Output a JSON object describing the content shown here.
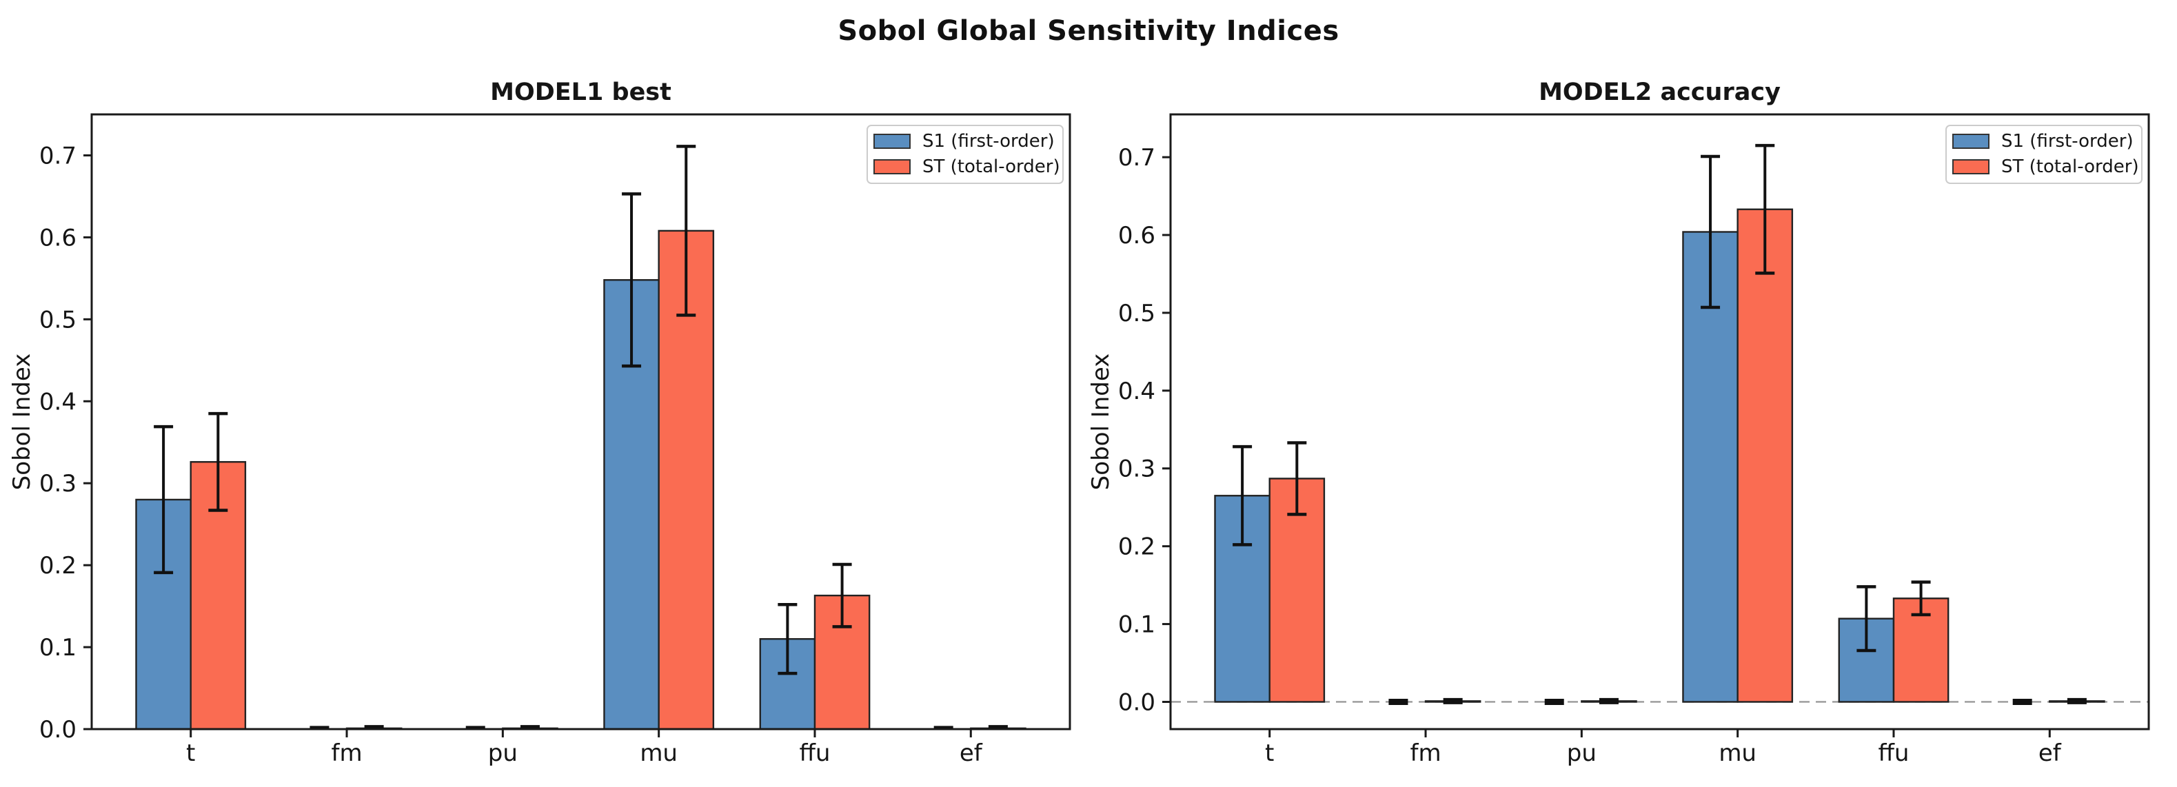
{
  "figure": {
    "title": "Sobol Global Sensitivity Indices",
    "background": "#ffffff"
  },
  "chart_data": [
    {
      "type": "bar",
      "title": "MODEL1 best",
      "ylabel": "Sobol Index",
      "categories": [
        "t",
        "fm",
        "pu",
        "mu",
        "ffu",
        "ef"
      ],
      "series": [
        {
          "name": "S1 (first-order)",
          "color": "#5a8ec0",
          "values": [
            0.28,
            0.0,
            0.0,
            0.548,
            0.11,
            0.0
          ],
          "errors": [
            0.089,
            0.002,
            0.002,
            0.105,
            0.042,
            0.002
          ]
        },
        {
          "name": "ST (total-order)",
          "color": "#fa6c52",
          "values": [
            0.326,
            0.001,
            0.001,
            0.608,
            0.163,
            0.001
          ],
          "errors": [
            0.059,
            0.002,
            0.002,
            0.103,
            0.038,
            0.002
          ]
        }
      ],
      "ylim": [
        0,
        0.75
      ],
      "yticks": [
        0.0,
        0.1,
        0.2,
        0.3,
        0.4,
        0.5,
        0.6,
        0.7
      ],
      "zero_line": false,
      "grid": false,
      "legend_position": "upper right"
    },
    {
      "type": "bar",
      "title": "MODEL2 accuracy",
      "ylabel": "Sobol Index",
      "categories": [
        "t",
        "fm",
        "pu",
        "mu",
        "ffu",
        "ef"
      ],
      "series": [
        {
          "name": "S1 (first-order)",
          "color": "#5a8ec0",
          "values": [
            0.265,
            0.0,
            0.0,
            0.604,
            0.107,
            0.0
          ],
          "errors": [
            0.063,
            0.002,
            0.002,
            0.097,
            0.041,
            0.002
          ]
        },
        {
          "name": "ST (total-order)",
          "color": "#fa6c52",
          "values": [
            0.287,
            0.001,
            0.001,
            0.633,
            0.133,
            0.001
          ],
          "errors": [
            0.046,
            0.002,
            0.002,
            0.082,
            0.021,
            0.002
          ]
        }
      ],
      "ylim": [
        -0.035,
        0.755
      ],
      "yticks": [
        0.0,
        0.1,
        0.2,
        0.3,
        0.4,
        0.5,
        0.6,
        0.7
      ],
      "zero_line": true,
      "grid": false,
      "legend_position": "upper right"
    }
  ],
  "style": {
    "bar_edge_color": "#222222",
    "error_color": "#111111",
    "spine_color": "#1a1a1a",
    "zero_line_color": "#999999",
    "legend_border_color": "#cccccc",
    "legend_background": "#ffffff"
  }
}
